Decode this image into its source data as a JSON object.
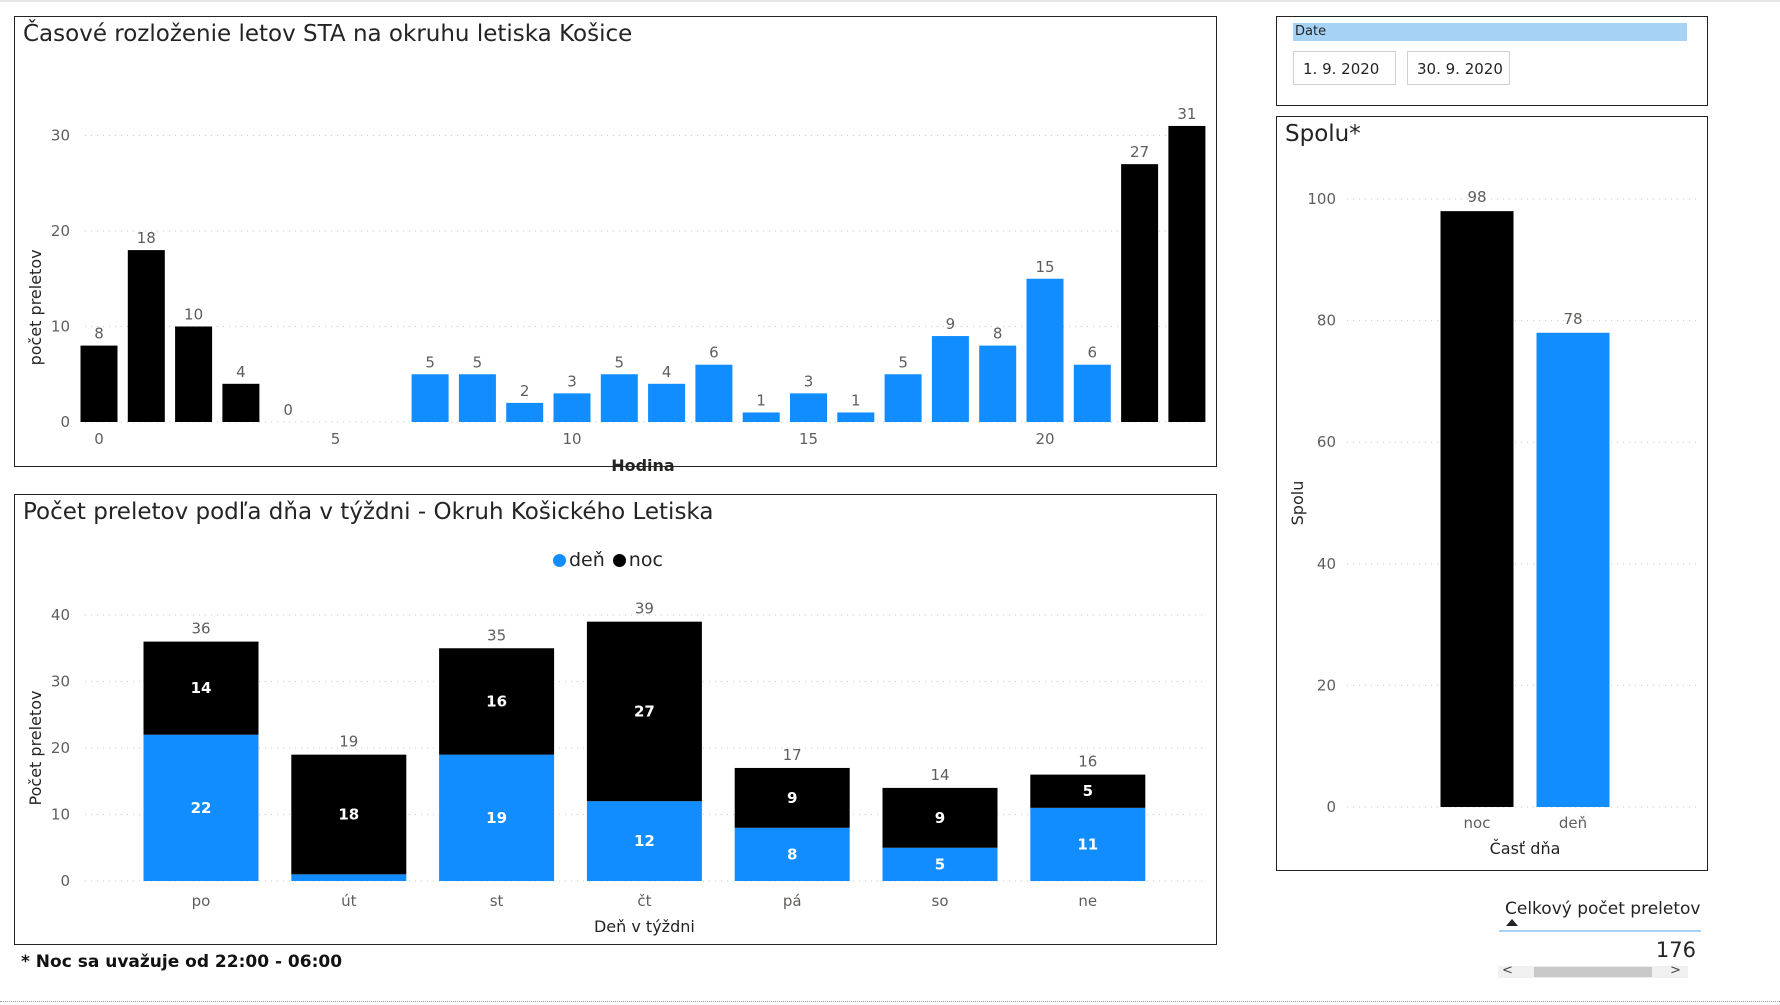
{
  "colors": {
    "day": "#118DFF",
    "night": "#000000",
    "slicer_header": "#A6D2F5"
  },
  "hourly_chart": {
    "title": "Časové rozloženie letov STA na okruhu letiska Košice"
  },
  "weekday_chart": {
    "title": "Počet preletov podľa dňa v týždni - Okruh Košického Letiska",
    "legend": [
      {
        "label": "deň",
        "color": "#118DFF"
      },
      {
        "label": "noc",
        "color": "#000000"
      }
    ]
  },
  "date_slicer": {
    "header": "Date",
    "start": "1. 9. 2020",
    "end": "30. 9. 2020"
  },
  "total_chart": {
    "title": "Spolu*"
  },
  "note": "* Noc sa uvažuje od 22:00 - 06:00",
  "card": {
    "label": "Celkový počet preletov",
    "value": "176",
    "scroll_left": "<",
    "scroll_right": ">"
  },
  "chart_data": [
    {
      "type": "bar",
      "title": "Časové rozloženie letov STA na okruhu letiska Košice",
      "xlabel": "Hodina",
      "ylabel": "počet preletov",
      "x": [
        0,
        1,
        2,
        3,
        4,
        7,
        8,
        9,
        10,
        11,
        12,
        13,
        14,
        15,
        16,
        17,
        18,
        19,
        20,
        21,
        22,
        23
      ],
      "values": [
        8,
        18,
        10,
        4,
        0,
        5,
        5,
        2,
        3,
        5,
        4,
        6,
        1,
        3,
        1,
        5,
        9,
        8,
        15,
        6,
        27,
        31
      ],
      "part": [
        "noc",
        "noc",
        "noc",
        "noc",
        "noc",
        "deň",
        "deň",
        "deň",
        "deň",
        "deň",
        "deň",
        "deň",
        "deň",
        "deň",
        "deň",
        "deň",
        "deň",
        "deň",
        "deň",
        "deň",
        "noc",
        "noc"
      ],
      "xticks": [
        0,
        5,
        10,
        15,
        20
      ],
      "yticks": [
        0,
        10,
        20,
        30
      ],
      "xlim": [
        0,
        23
      ],
      "ylim": [
        0,
        31
      ],
      "grid": true
    },
    {
      "type": "bar",
      "stacked": true,
      "title": "Počet preletov podľa dňa v týždni - Okruh Košického Letiska",
      "xlabel": "Deň v týždni",
      "ylabel": "Počet preletov",
      "categories": [
        "po",
        "út",
        "st",
        "čt",
        "pá",
        "so",
        "ne"
      ],
      "series": [
        {
          "name": "deň",
          "values": [
            22,
            1,
            19,
            12,
            8,
            5,
            11
          ]
        },
        {
          "name": "noc",
          "values": [
            14,
            18,
            16,
            27,
            9,
            9,
            5
          ]
        }
      ],
      "totals": [
        36,
        19,
        35,
        39,
        17,
        14,
        16
      ],
      "yticks": [
        0,
        10,
        20,
        30,
        40
      ],
      "ylim": [
        0,
        40
      ],
      "legend_position": "top-center",
      "grid": true
    },
    {
      "type": "bar",
      "title": "Spolu*",
      "xlabel": "Časť dňa",
      "ylabel": "Spolu",
      "categories": [
        "noc",
        "deň"
      ],
      "values": [
        98,
        78
      ],
      "yticks": [
        0,
        20,
        40,
        60,
        80,
        100
      ],
      "ylim": [
        0,
        100
      ],
      "grid": true
    }
  ]
}
